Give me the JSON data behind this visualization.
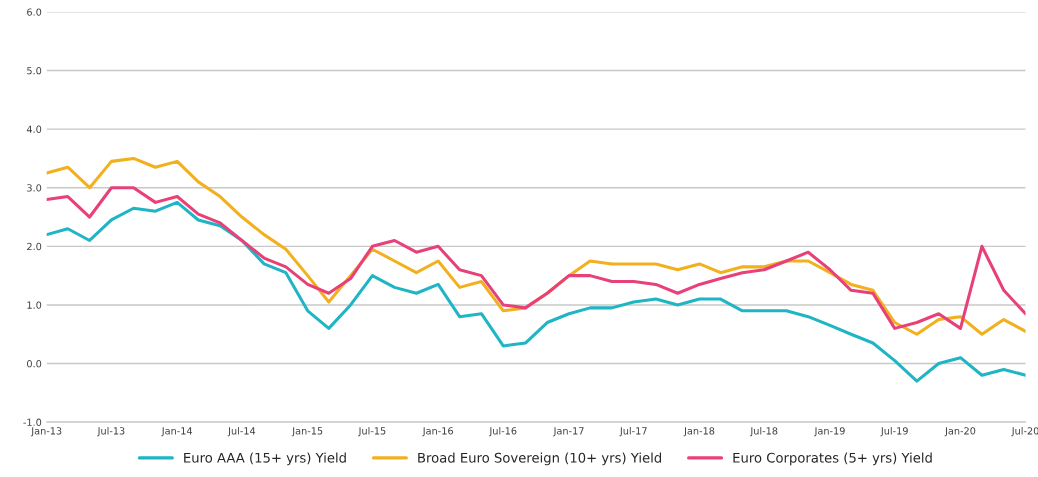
{
  "chart_data": {
    "type": "line",
    "x": [
      "2013-01",
      "2013-03",
      "2013-05",
      "2013-07",
      "2013-09",
      "2013-11",
      "2014-01",
      "2014-03",
      "2014-05",
      "2014-07",
      "2014-09",
      "2014-11",
      "2015-01",
      "2015-03",
      "2015-05",
      "2015-07",
      "2015-09",
      "2015-11",
      "2016-01",
      "2016-03",
      "2016-05",
      "2016-07",
      "2016-09",
      "2016-11",
      "2017-01",
      "2017-03",
      "2017-05",
      "2017-07",
      "2017-09",
      "2017-11",
      "2018-01",
      "2018-03",
      "2018-05",
      "2018-07",
      "2018-09",
      "2018-11",
      "2019-01",
      "2019-03",
      "2019-05",
      "2019-07",
      "2019-09",
      "2019-11",
      "2020-01",
      "2020-03",
      "2020-05",
      "2020-07"
    ],
    "series": [
      {
        "name": "Euro AAA (15+ yrs) Yield",
        "color": "#1fb5c4",
        "values": [
          2.2,
          2.3,
          2.1,
          2.45,
          2.65,
          2.6,
          2.75,
          2.45,
          2.35,
          2.1,
          1.7,
          1.55,
          0.9,
          0.6,
          1.0,
          1.5,
          1.3,
          1.2,
          1.35,
          0.8,
          0.85,
          0.3,
          0.35,
          0.7,
          0.85,
          0.95,
          0.95,
          1.05,
          1.1,
          1.0,
          1.1,
          1.1,
          0.9,
          0.9,
          0.9,
          0.8,
          0.65,
          0.5,
          0.35,
          0.05,
          -0.3,
          0.0,
          0.1,
          -0.2,
          -0.1,
          -0.2
        ]
      },
      {
        "name": "Broad Euro Sovereign (10+ yrs) Yield",
        "color": "#f2b01e",
        "values": [
          3.25,
          3.35,
          3.0,
          3.45,
          3.5,
          3.35,
          3.45,
          3.1,
          2.85,
          2.5,
          2.2,
          1.95,
          1.5,
          1.05,
          1.5,
          1.95,
          1.75,
          1.55,
          1.75,
          1.3,
          1.4,
          0.9,
          0.95,
          1.2,
          1.5,
          1.75,
          1.7,
          1.7,
          1.7,
          1.6,
          1.7,
          1.55,
          1.65,
          1.65,
          1.75,
          1.75,
          1.55,
          1.35,
          1.25,
          0.7,
          0.5,
          0.75,
          0.8,
          0.5,
          0.75,
          0.55
        ]
      },
      {
        "name": "Euro Corporates (5+ yrs) Yield",
        "color": "#e8417a",
        "values": [
          2.8,
          2.85,
          2.5,
          3.0,
          3.0,
          2.75,
          2.85,
          2.55,
          2.4,
          2.1,
          1.8,
          1.65,
          1.35,
          1.2,
          1.45,
          2.0,
          2.1,
          1.9,
          2.0,
          1.6,
          1.5,
          1.0,
          0.95,
          1.2,
          1.5,
          1.5,
          1.4,
          1.4,
          1.35,
          1.2,
          1.35,
          1.45,
          1.55,
          1.6,
          1.75,
          1.9,
          1.6,
          1.25,
          1.2,
          0.6,
          0.7,
          0.85,
          0.6,
          2.0,
          1.25,
          0.85
        ]
      }
    ],
    "xlim": [
      "2013-01",
      "2020-07"
    ],
    "xticks": [
      {
        "value": "2013-01",
        "label": "Jan-13"
      },
      {
        "value": "2013-07",
        "label": "Jul-13"
      },
      {
        "value": "2014-01",
        "label": "Jan-14"
      },
      {
        "value": "2014-07",
        "label": "Jul-14"
      },
      {
        "value": "2015-01",
        "label": "Jan-15"
      },
      {
        "value": "2015-07",
        "label": "Jul-15"
      },
      {
        "value": "2016-01",
        "label": "Jan-16"
      },
      {
        "value": "2016-07",
        "label": "Jul-16"
      },
      {
        "value": "2017-01",
        "label": "Jan-17"
      },
      {
        "value": "2017-07",
        "label": "Jul-17"
      },
      {
        "value": "2018-01",
        "label": "Jan-18"
      },
      {
        "value": "2018-07",
        "label": "Jul-18"
      },
      {
        "value": "2019-01",
        "label": "Jan-19"
      },
      {
        "value": "2019-07",
        "label": "Jul-19"
      },
      {
        "value": "2020-01",
        "label": "Jan-20"
      },
      {
        "value": "2020-07",
        "label": "Jul-20"
      }
    ],
    "ylim": [
      -1,
      6
    ],
    "yticks": [
      {
        "value": -1,
        "label": "-1.0"
      },
      {
        "value": 0,
        "label": "0.0"
      },
      {
        "value": 1,
        "label": "1.0"
      },
      {
        "value": 2,
        "label": "2.0"
      },
      {
        "value": 3,
        "label": "3.0"
      },
      {
        "value": 4,
        "label": "4.0"
      },
      {
        "value": 5,
        "label": "5.0"
      },
      {
        "value": 6,
        "label": "6.0"
      }
    ],
    "grid": "y",
    "legend": "bottom"
  }
}
